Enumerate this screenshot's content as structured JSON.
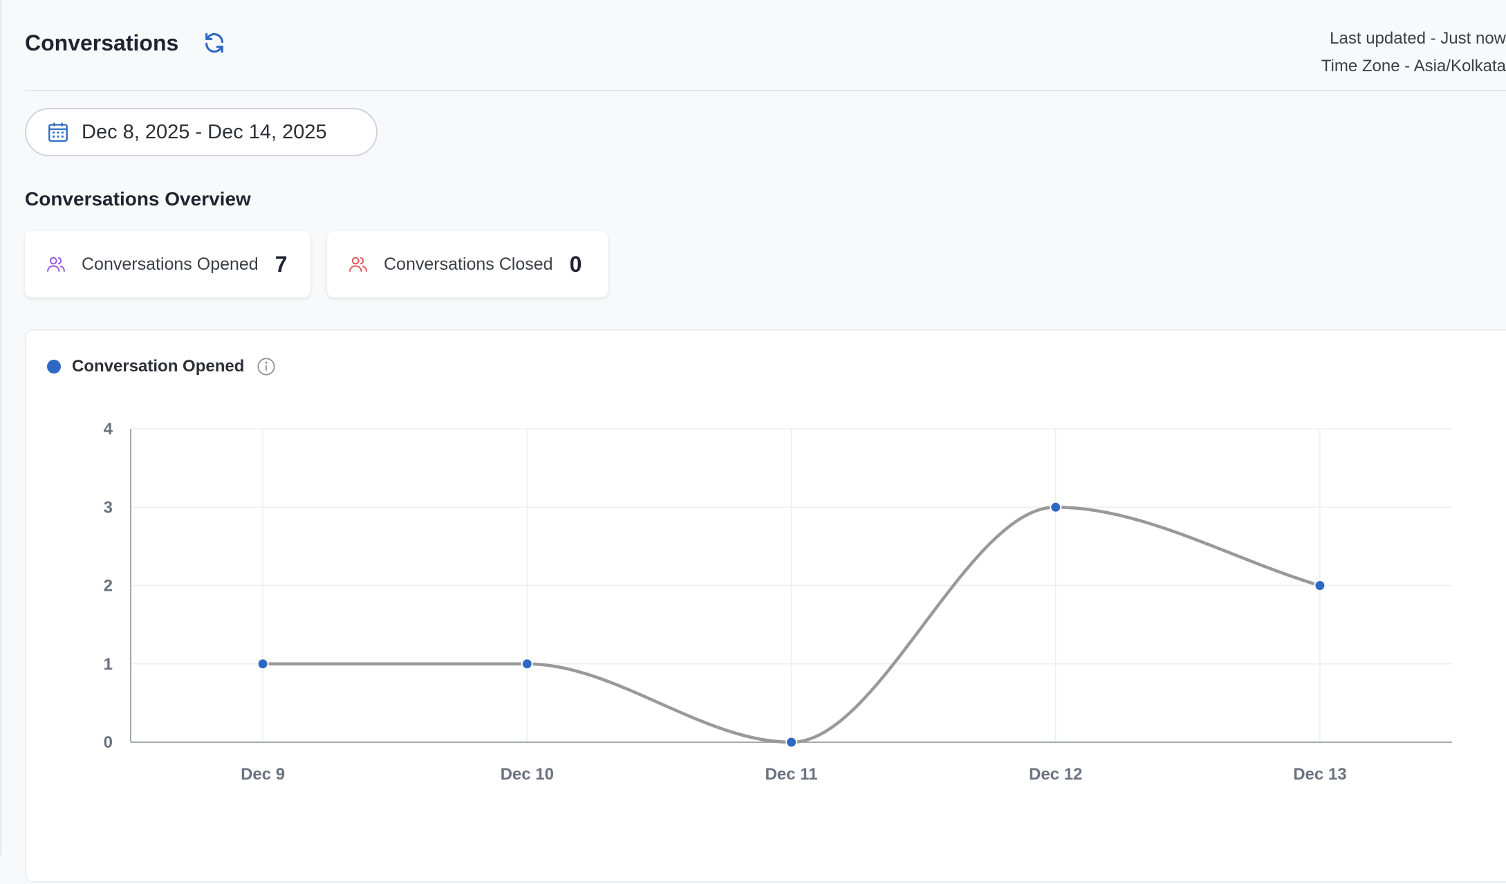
{
  "header": {
    "title": "Conversations",
    "last_updated": "Last updated - Just now",
    "time_zone": "Time Zone - Asia/Kolkata"
  },
  "date_range": {
    "label": "Dec 8, 2025 - Dec 14, 2025"
  },
  "overview": {
    "title": "Conversations Overview",
    "cards": [
      {
        "label": "Conversations Opened",
        "value": "7",
        "icon": "users-icon",
        "color": "#9b59d9"
      },
      {
        "label": "Conversations Closed",
        "value": "0",
        "icon": "users-icon",
        "color": "#e05a5a"
      }
    ]
  },
  "chart_data": {
    "type": "line",
    "categories": [
      "Dec 9",
      "Dec 10",
      "Dec 11",
      "Dec 12",
      "Dec 13"
    ],
    "series": [
      {
        "name": "Conversation Opened",
        "values": [
          1,
          1,
          0,
          3,
          2
        ],
        "line_color": "#999999",
        "point_color": "#2d68c4"
      }
    ],
    "ylim": [
      0,
      4
    ],
    "yticks": [
      0,
      1,
      2,
      3,
      4
    ],
    "grid": true,
    "legend": "top-left"
  }
}
